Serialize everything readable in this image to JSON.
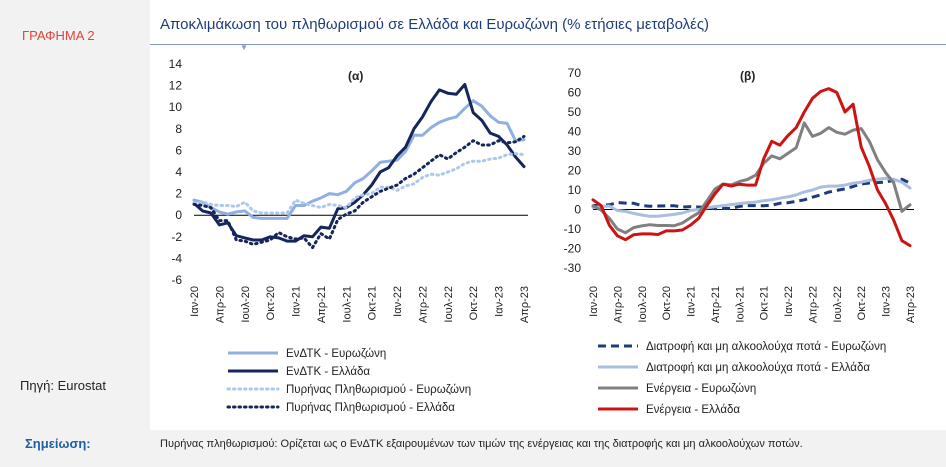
{
  "figure_label": "ΓΡΑΦΗΜΑ 2",
  "title": "Αποκλιμάκωση του πληθωρισμού σε Ελλάδα και Ευρωζώνη (% ετήσιες μεταβολές)",
  "source": "Πηγή: Eurostat",
  "note_label": "Σημείωση:",
  "note_text": "Πυρήνας πληθωρισμού: Ορίζεται ως ο ΕνΔΤΚ εξαιρουμένων των τιμών της ενέργειας και της διατροφής και μη αλκοολούχων ποτών.",
  "chart_data": [
    {
      "type": "line",
      "panel_label": "(α)",
      "x": [
        "Ιαν-20",
        "Φεβ-20",
        "Μαρ-20",
        "Απρ-20",
        "Μαϊ-20",
        "Ιουν-20",
        "Ιουλ-20",
        "Αυγ-20",
        "Σεπ-20",
        "Οκτ-20",
        "Νοε-20",
        "Δεκ-20",
        "Ιαν-21",
        "Φεβ-21",
        "Μαρ-21",
        "Απρ-21",
        "Μαϊ-21",
        "Ιουν-21",
        "Ιουλ-21",
        "Αυγ-21",
        "Σεπ-21",
        "Οκτ-21",
        "Νοε-21",
        "Δεκ-21",
        "Ιαν-22",
        "Φεβ-22",
        "Μαρ-22",
        "Απρ-22",
        "Μαϊ-22",
        "Ιουν-22",
        "Ιουλ-22",
        "Αυγ-22",
        "Σεπ-22",
        "Οκτ-22",
        "Νοε-22",
        "Δεκ-22",
        "Ιαν-23",
        "Φεβ-23",
        "Μαρ-23",
        "Απρ-23"
      ],
      "tick_labels": [
        "Ιαν-20",
        "Απρ-20",
        "Ιουλ-20",
        "Οκτ-20",
        "Ιαν-21",
        "Απρ-21",
        "Ιουλ-21",
        "Οκτ-21",
        "Ιαν-22",
        "Απρ-22",
        "Ιουλ-22",
        "Οκτ-22",
        "Ιαν-23",
        "Απρ-23"
      ],
      "ylim": [
        -6,
        14
      ],
      "yticks": [
        -6,
        -4,
        -2,
        0,
        2,
        4,
        6,
        8,
        10,
        12,
        14
      ],
      "series": [
        {
          "name": "ΕνΔΤΚ - Ευρωζώνη",
          "color": "#8fb0e0",
          "dash": "solid",
          "values": [
            1.4,
            1.2,
            0.7,
            0.3,
            0.1,
            0.3,
            0.4,
            -0.2,
            -0.3,
            -0.3,
            -0.3,
            -0.3,
            0.9,
            0.9,
            1.3,
            1.6,
            2.0,
            1.9,
            2.2,
            3.0,
            3.4,
            4.1,
            4.9,
            5.0,
            5.1,
            5.9,
            7.4,
            7.4,
            8.1,
            8.6,
            8.9,
            9.1,
            9.9,
            10.6,
            10.1,
            9.2,
            8.6,
            8.5,
            6.9,
            7.0
          ]
        },
        {
          "name": "ΕνΔΤΚ - Ελλάδα",
          "color": "#14265c",
          "dash": "solid",
          "values": [
            1.1,
            0.4,
            0.2,
            -0.9,
            -0.7,
            -1.9,
            -2.1,
            -2.3,
            -2.3,
            -2.0,
            -2.1,
            -2.4,
            -2.4,
            -1.9,
            -2.0,
            -1.1,
            -1.2,
            0.6,
            0.7,
            1.2,
            1.9,
            2.8,
            4.0,
            4.4,
            5.5,
            6.3,
            8.0,
            9.1,
            10.5,
            11.6,
            11.3,
            11.2,
            12.1,
            9.5,
            8.8,
            7.6,
            7.3,
            6.5,
            5.4,
            4.5
          ]
        },
        {
          "name": "Πυρήνας Πληθωρισμού - Ευρωζώνη",
          "color": "#aec8ec",
          "dash": "dot",
          "values": [
            1.1,
            1.2,
            1.0,
            0.9,
            0.9,
            0.8,
            1.2,
            0.4,
            0.2,
            0.2,
            0.2,
            0.2,
            1.4,
            1.1,
            0.9,
            0.7,
            1.0,
            0.9,
            0.7,
            1.6,
            1.9,
            2.0,
            2.6,
            2.6,
            2.3,
            2.7,
            2.9,
            3.5,
            3.8,
            3.7,
            4.0,
            4.3,
            4.8,
            5.0,
            5.0,
            5.2,
            5.3,
            5.6,
            5.7,
            5.6
          ]
        },
        {
          "name": "Πυρήνας Πληθωρισμού - Ελλάδα",
          "color": "#14265c",
          "dash": "dot",
          "values": [
            1.0,
            0.9,
            0.7,
            -0.5,
            -0.5,
            -2.3,
            -2.4,
            -2.7,
            -2.5,
            -2.3,
            -1.6,
            -2.0,
            -2.2,
            -2.1,
            -3.0,
            -1.7,
            -2.2,
            -0.4,
            0.1,
            0.4,
            1.2,
            1.7,
            2.2,
            2.5,
            2.8,
            3.4,
            3.8,
            4.4,
            5.0,
            5.6,
            5.2,
            5.8,
            6.3,
            6.9,
            6.5,
            6.5,
            6.9,
            6.7,
            6.8,
            7.3
          ]
        }
      ]
    },
    {
      "type": "line",
      "panel_label": "(β)",
      "x": [
        "Ιαν-20",
        "Φεβ-20",
        "Μαρ-20",
        "Απρ-20",
        "Μαϊ-20",
        "Ιουν-20",
        "Ιουλ-20",
        "Αυγ-20",
        "Σεπ-20",
        "Οκτ-20",
        "Νοε-20",
        "Δεκ-20",
        "Ιαν-21",
        "Φεβ-21",
        "Μαρ-21",
        "Απρ-21",
        "Μαϊ-21",
        "Ιουν-21",
        "Ιουλ-21",
        "Αυγ-21",
        "Σεπ-21",
        "Οκτ-21",
        "Νοε-21",
        "Δεκ-21",
        "Ιαν-22",
        "Φεβ-22",
        "Μαρ-22",
        "Απρ-22",
        "Μαϊ-22",
        "Ιουν-22",
        "Ιουλ-22",
        "Αυγ-22",
        "Σεπ-22",
        "Οκτ-22",
        "Νοε-22",
        "Δεκ-22",
        "Ιαν-23",
        "Φεβ-23",
        "Μαρ-23",
        "Απρ-23"
      ],
      "tick_labels": [
        "Ιαν-20",
        "Απρ-20",
        "Ιουλ-20",
        "Οκτ-20",
        "Ιαν-21",
        "Απρ-21",
        "Ιουλ-21",
        "Οκτ-21",
        "Ιαν-22",
        "Απρ-22",
        "Ιουλ-22",
        "Οκτ-22",
        "Ιαν-23",
        "Απρ-23"
      ],
      "ylim": [
        -30,
        70
      ],
      "yticks": [
        -30,
        -20,
        -10,
        0,
        10,
        20,
        30,
        40,
        50,
        60,
        70
      ],
      "series": [
        {
          "name": "Διατροφή και μη αλκοολούχα ποτά - Ευρωζώνη",
          "color": "#1f3c7a",
          "dash": "dash",
          "values": [
            2.0,
            2.2,
            2.4,
            3.6,
            3.3,
            3.2,
            2.0,
            1.7,
            1.8,
            1.9,
            1.9,
            1.3,
            1.5,
            1.3,
            1.1,
            0.4,
            0.6,
            0.5,
            1.6,
            2.0,
            2.0,
            1.9,
            2.2,
            3.2,
            3.5,
            4.2,
            5.0,
            6.3,
            7.5,
            8.9,
            9.8,
            10.6,
            11.8,
            13.1,
            13.6,
            13.8,
            14.1,
            15.0,
            15.5,
            13.6
          ]
        },
        {
          "name": "Διατροφή και μη αλκοολούχα ποτά - Ελλάδα",
          "color": "#a9bfe0",
          "dash": "solid",
          "values": [
            1.0,
            1.5,
            1.8,
            -0.5,
            -1.0,
            -2.0,
            -2.8,
            -3.5,
            -3.5,
            -3.0,
            -2.5,
            -1.8,
            -0.5,
            0.0,
            0.8,
            1.5,
            2.0,
            2.5,
            3.0,
            3.5,
            3.8,
            4.5,
            5.0,
            5.8,
            6.5,
            7.5,
            9.0,
            10.0,
            11.5,
            12.0,
            12.0,
            12.5,
            13.5,
            14.0,
            15.0,
            15.5,
            16.0,
            15.5,
            14.0,
            11.0
          ]
        },
        {
          "name": "Ενέργεια - Ευρωζώνη",
          "color": "#808080",
          "dash": "solid",
          "values": [
            1.9,
            -0.3,
            -4.5,
            -10.0,
            -11.9,
            -9.3,
            -8.4,
            -7.8,
            -8.2,
            -8.2,
            -8.3,
            -6.9,
            -4.2,
            -1.7,
            4.3,
            10.4,
            13.1,
            12.6,
            14.3,
            15.4,
            17.6,
            23.7,
            27.5,
            26.0,
            28.8,
            31.7,
            44.4,
            37.5,
            39.1,
            42.0,
            39.6,
            38.6,
            40.7,
            41.5,
            34.9,
            25.5,
            18.9,
            13.7,
            -0.9,
            2.4
          ]
        },
        {
          "name": "Ενέργεια - Ελλάδα",
          "color": "#cc1414",
          "dash": "solid",
          "values": [
            5.0,
            2.0,
            -8.0,
            -13.5,
            -15.5,
            -13.0,
            -12.5,
            -12.5,
            -12.8,
            -11.0,
            -11.0,
            -10.5,
            -8.0,
            -4.5,
            2.0,
            8.0,
            13.0,
            12.0,
            13.0,
            12.5,
            12.5,
            26.0,
            35.0,
            33.0,
            38.0,
            42.0,
            50.0,
            57.0,
            60.5,
            62.0,
            60.0,
            50.0,
            54.0,
            32.0,
            22.0,
            10.0,
            3.0,
            -5.5,
            -16.0,
            -18.5
          ]
        }
      ]
    }
  ]
}
